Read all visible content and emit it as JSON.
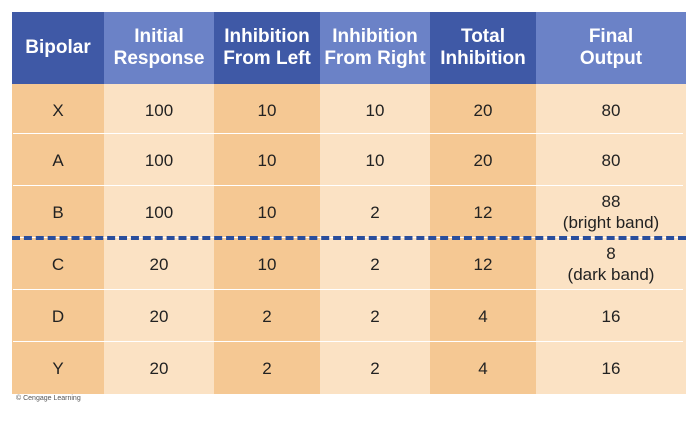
{
  "headers": [
    "Bipolar",
    "Initial\nResponse",
    "Inhibition\nFrom Left",
    "Inhibition\nFrom Right",
    "Total\nInhibition",
    "Final\nOutput"
  ],
  "rows": [
    [
      "X",
      "100",
      "10",
      "10",
      "20",
      "80"
    ],
    [
      "A",
      "100",
      "10",
      "10",
      "20",
      "80"
    ],
    [
      "B",
      "100",
      "10",
      "2",
      "12",
      "88\n(bright band)"
    ],
    [
      "C",
      "20",
      "10",
      "2",
      "12",
      "8\n(dark band)"
    ],
    [
      "D",
      "20",
      "2",
      "2",
      "4",
      "16"
    ],
    [
      "Y",
      "20",
      "2",
      "2",
      "4",
      "16"
    ]
  ],
  "credit": "© Cengage Learning",
  "colors": {
    "header_dark": "#3f59a6",
    "header_light": "#6b82c7",
    "body_dark": "#f5c893",
    "body_light": "#fbe2c4",
    "dash": "#2a4e9c"
  }
}
